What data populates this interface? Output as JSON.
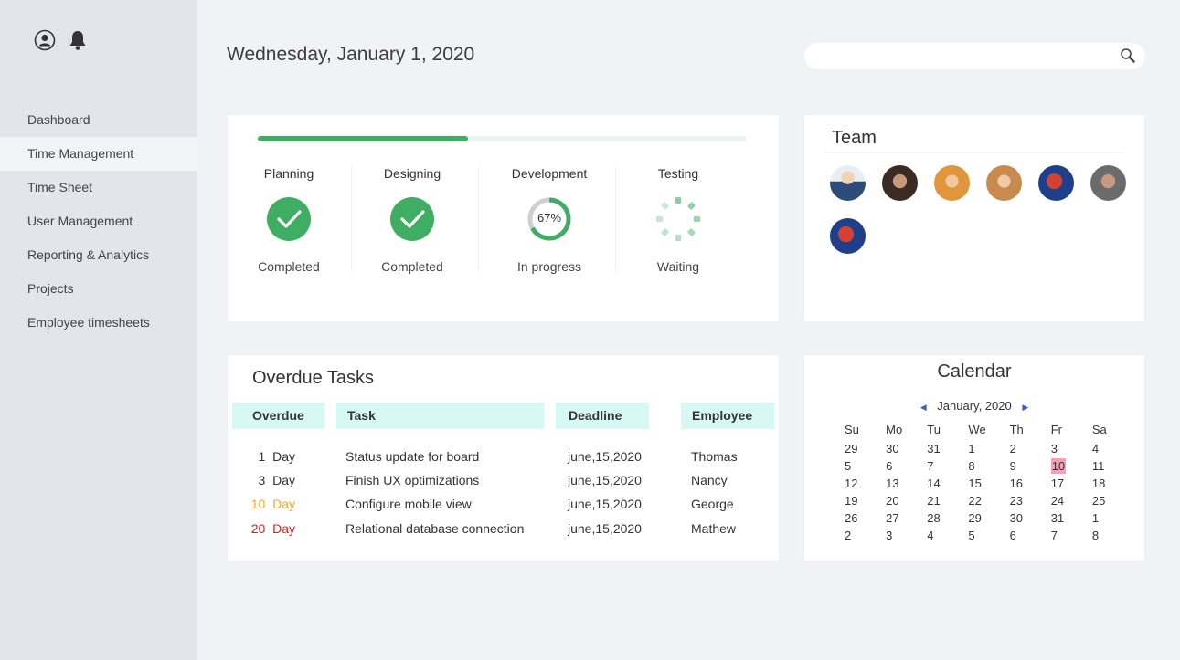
{
  "header": {
    "date": "Wednesday, January 1, 2020",
    "search_placeholder": ""
  },
  "sidebar": {
    "icons": [
      "user-icon",
      "bell-icon"
    ],
    "items": [
      {
        "label": "Dashboard",
        "active": false
      },
      {
        "label": "Time Management",
        "active": true
      },
      {
        "label": "Time Sheet",
        "active": false
      },
      {
        "label": "User Management",
        "active": false
      },
      {
        "label": "Reporting & Analytics",
        "active": false
      },
      {
        "label": "Projects",
        "active": false
      },
      {
        "label": "Employee timesheets",
        "active": false
      }
    ]
  },
  "progress": {
    "fill_fraction": 0.43,
    "accent": "#3fae62",
    "stages": [
      {
        "name": "Planning",
        "status": "Completed",
        "icon": "check-icon"
      },
      {
        "name": "Designing",
        "status": "Completed",
        "icon": "check-icon"
      },
      {
        "name": "Development",
        "status": "In progress",
        "percent": "67%",
        "fraction": 0.67
      },
      {
        "name": "Testing",
        "status": "Waiting",
        "icon": "spinner-icon"
      }
    ]
  },
  "team": {
    "title": "Team",
    "members": [
      "avatar",
      "avatar",
      "avatar",
      "avatar",
      "avatar",
      "avatar",
      "avatar"
    ]
  },
  "tasks": {
    "title": "Overdue Tasks",
    "headers": {
      "overdue": "Overdue",
      "task": "Task",
      "deadline": "Deadline",
      "employee": "Employee"
    },
    "rows": [
      {
        "num": "1",
        "unit": "Day",
        "task": "Status update for board",
        "deadline": "june,15,2020",
        "employee": "Thomas",
        "color": "#333333"
      },
      {
        "num": "3",
        "unit": "Day",
        "task": "Finish UX optimizations",
        "deadline": "june,15,2020",
        "employee": "Nancy",
        "color": "#333333"
      },
      {
        "num": "10",
        "unit": "Day",
        "task": "Configure mobile view",
        "deadline": "june,15,2020",
        "employee": "George",
        "color": "#f6a623"
      },
      {
        "num": "20",
        "unit": "Day",
        "task": "Relational database connection",
        "deadline": "june,15,2020",
        "employee": "Mathew",
        "color": "#e02020"
      }
    ]
  },
  "calendar": {
    "title": "Calendar",
    "month": "January, 2020",
    "weekdays": [
      "Su",
      "Mo",
      "Tu",
      "We",
      "Th",
      "Fr",
      "Sa"
    ],
    "days": [
      "29",
      "30",
      "31",
      "1",
      "2",
      "3",
      "4",
      "5",
      "6",
      "7",
      "8",
      "9",
      "10",
      "11",
      "12",
      "13",
      "14",
      "15",
      "16",
      "17",
      "18",
      "19",
      "20",
      "21",
      "22",
      "23",
      "24",
      "25",
      "26",
      "27",
      "28",
      "29",
      "30",
      "31",
      "1",
      "2",
      "3",
      "4",
      "5",
      "6",
      "7",
      "8"
    ],
    "selected_index": 12,
    "selected_color": "#f5a0b5"
  }
}
